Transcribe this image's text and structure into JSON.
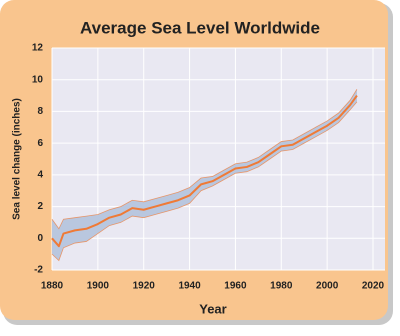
{
  "chart_data": {
    "type": "band-line",
    "title": "Average Sea Level Worldwide",
    "x_label": "Year",
    "y_label": "Sea level change (inches)",
    "x": [
      1880,
      1883,
      1885,
      1890,
      1895,
      1900,
      1905,
      1910,
      1915,
      1920,
      1925,
      1930,
      1935,
      1940,
      1945,
      1950,
      1955,
      1960,
      1965,
      1970,
      1975,
      1980,
      1985,
      1990,
      1995,
      2000,
      2005,
      2010,
      2013
    ],
    "values": [
      0,
      -0.5,
      0.3,
      0.5,
      0.6,
      0.9,
      1.3,
      1.5,
      1.9,
      1.8,
      2.0,
      2.2,
      2.4,
      2.7,
      3.4,
      3.6,
      4.0,
      4.4,
      4.5,
      4.8,
      5.3,
      5.8,
      5.9,
      6.3,
      6.7,
      7.1,
      7.6,
      8.4,
      9.0
    ],
    "lower": [
      -1.0,
      -1.4,
      -0.6,
      -0.3,
      -0.2,
      0.3,
      0.8,
      1.0,
      1.4,
      1.3,
      1.5,
      1.7,
      1.9,
      2.2,
      3.0,
      3.3,
      3.7,
      4.1,
      4.2,
      4.5,
      5.0,
      5.5,
      5.6,
      6.0,
      6.4,
      6.8,
      7.3,
      8.1,
      8.6
    ],
    "upper": [
      1.2,
      0.6,
      1.2,
      1.3,
      1.4,
      1.5,
      1.8,
      2.0,
      2.4,
      2.3,
      2.5,
      2.7,
      2.9,
      3.2,
      3.8,
      3.9,
      4.3,
      4.7,
      4.8,
      5.1,
      5.6,
      6.1,
      6.2,
      6.6,
      7.0,
      7.4,
      7.9,
      8.7,
      9.4
    ],
    "color": "#ef7a36",
    "band_color": "#b9c7df",
    "xlim": [
      1880,
      2020
    ],
    "xticks": [
      1880,
      1900,
      1920,
      1940,
      1960,
      1980,
      2000,
      2020
    ],
    "ylim": [
      -2,
      12
    ],
    "yticks": [
      -2,
      0,
      2,
      4,
      6,
      8,
      10,
      12
    ],
    "grid": true
  }
}
